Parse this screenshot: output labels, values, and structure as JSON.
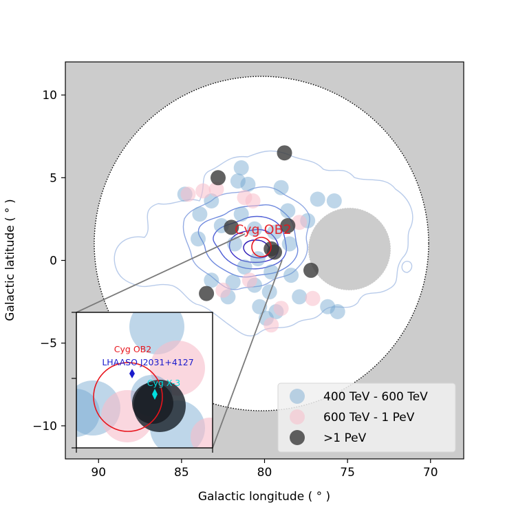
{
  "chart_data": {
    "type": "scatter",
    "xlabel": "Galactic longitude ( ° )",
    "ylabel": "Galactic latitude ( ° )",
    "xlim": [
      92,
      68
    ],
    "ylim": [
      -12,
      12
    ],
    "x_ticks": [
      90,
      85,
      80,
      75,
      70
    ],
    "y_ticks": [
      10,
      5,
      0,
      -5,
      -10
    ],
    "x_tick_labels": [
      "90",
      "85",
      "80",
      "75",
      "70"
    ],
    "y_tick_labels": [
      "10",
      "5",
      "0",
      "−5",
      "−10"
    ],
    "grid": false,
    "background_color": "#cccccc",
    "field_of_view": {
      "center": [
        80,
        1
      ],
      "radius_deg": 10
    },
    "masked_region": {
      "center": [
        74.5,
        0.8
      ],
      "radius_deg": 2.5
    },
    "series": [
      {
        "name": "400 TeV - 600 TeV",
        "color": "#6fa3cf",
        "points": [
          [
            81.4,
            5.6
          ],
          [
            81.0,
            4.6
          ],
          [
            81.6,
            4.8
          ],
          [
            84.8,
            4.0
          ],
          [
            83.2,
            3.6
          ],
          [
            83.9,
            2.8
          ],
          [
            82.6,
            2.1
          ],
          [
            81.4,
            2.8
          ],
          [
            79.0,
            4.4
          ],
          [
            78.6,
            3.0
          ],
          [
            77.4,
            2.4
          ],
          [
            76.8,
            3.7
          ],
          [
            75.8,
            3.6
          ],
          [
            84.0,
            1.3
          ],
          [
            80.6,
            1.9
          ],
          [
            81.8,
            1.0
          ],
          [
            79.4,
            1.7
          ],
          [
            78.5,
            1.0
          ],
          [
            80.4,
            0.1
          ],
          [
            81.2,
            -0.4
          ],
          [
            79.6,
            -0.7
          ],
          [
            78.4,
            -0.9
          ],
          [
            81.9,
            -1.3
          ],
          [
            80.6,
            -1.5
          ],
          [
            79.7,
            -1.9
          ],
          [
            82.2,
            -2.2
          ],
          [
            77.9,
            -2.2
          ],
          [
            80.3,
            -2.8
          ],
          [
            79.3,
            -3.1
          ],
          [
            79.9,
            -3.5
          ],
          [
            76.2,
            -2.8
          ],
          [
            75.6,
            -3.1
          ],
          [
            83.2,
            -1.2
          ]
        ]
      },
      {
        "name": "600 TeV - 1 PeV",
        "color": "#f7bdca",
        "points": [
          [
            84.6,
            4.0
          ],
          [
            83.7,
            4.2
          ],
          [
            82.9,
            4.3
          ],
          [
            81.2,
            3.8
          ],
          [
            80.7,
            3.6
          ],
          [
            77.9,
            2.3
          ],
          [
            80.9,
            -1.2
          ],
          [
            82.5,
            -1.8
          ],
          [
            77.1,
            -2.3
          ],
          [
            79.0,
            -2.9
          ],
          [
            79.6,
            -3.9
          ]
        ]
      },
      {
        "name": ">1 PeV",
        "color": "#3a3a3a",
        "points": [
          [
            78.8,
            6.5
          ],
          [
            82.8,
            5.0
          ],
          [
            82.0,
            2.0
          ],
          [
            78.6,
            2.1
          ],
          [
            79.6,
            0.7
          ],
          [
            79.4,
            0.5
          ],
          [
            77.2,
            -0.6
          ],
          [
            83.5,
            -2.0
          ]
        ]
      }
    ],
    "annotations": {
      "main_label": "Cyg OB2",
      "main_label_color": "#e8141c",
      "main_circle": {
        "center": [
          80.2,
          0.8
        ],
        "radius_deg": 0.6,
        "color": "#e8141c"
      }
    },
    "inset": {
      "labels": {
        "cyg_ob2": "Cyg OB2",
        "lhaaso": "LHAASO J2031+4127",
        "cyg_x3": "Cyg X-3"
      },
      "colors": {
        "cyg_ob2": "#e8141c",
        "lhaaso": "#1a1acc",
        "cyg_x3": "#00e0e0"
      }
    },
    "legend": {
      "placement": "lower-right",
      "entries": [
        "400 TeV - 600 TeV",
        "600 TeV - 1 PeV",
        ">1 PeV"
      ]
    }
  }
}
